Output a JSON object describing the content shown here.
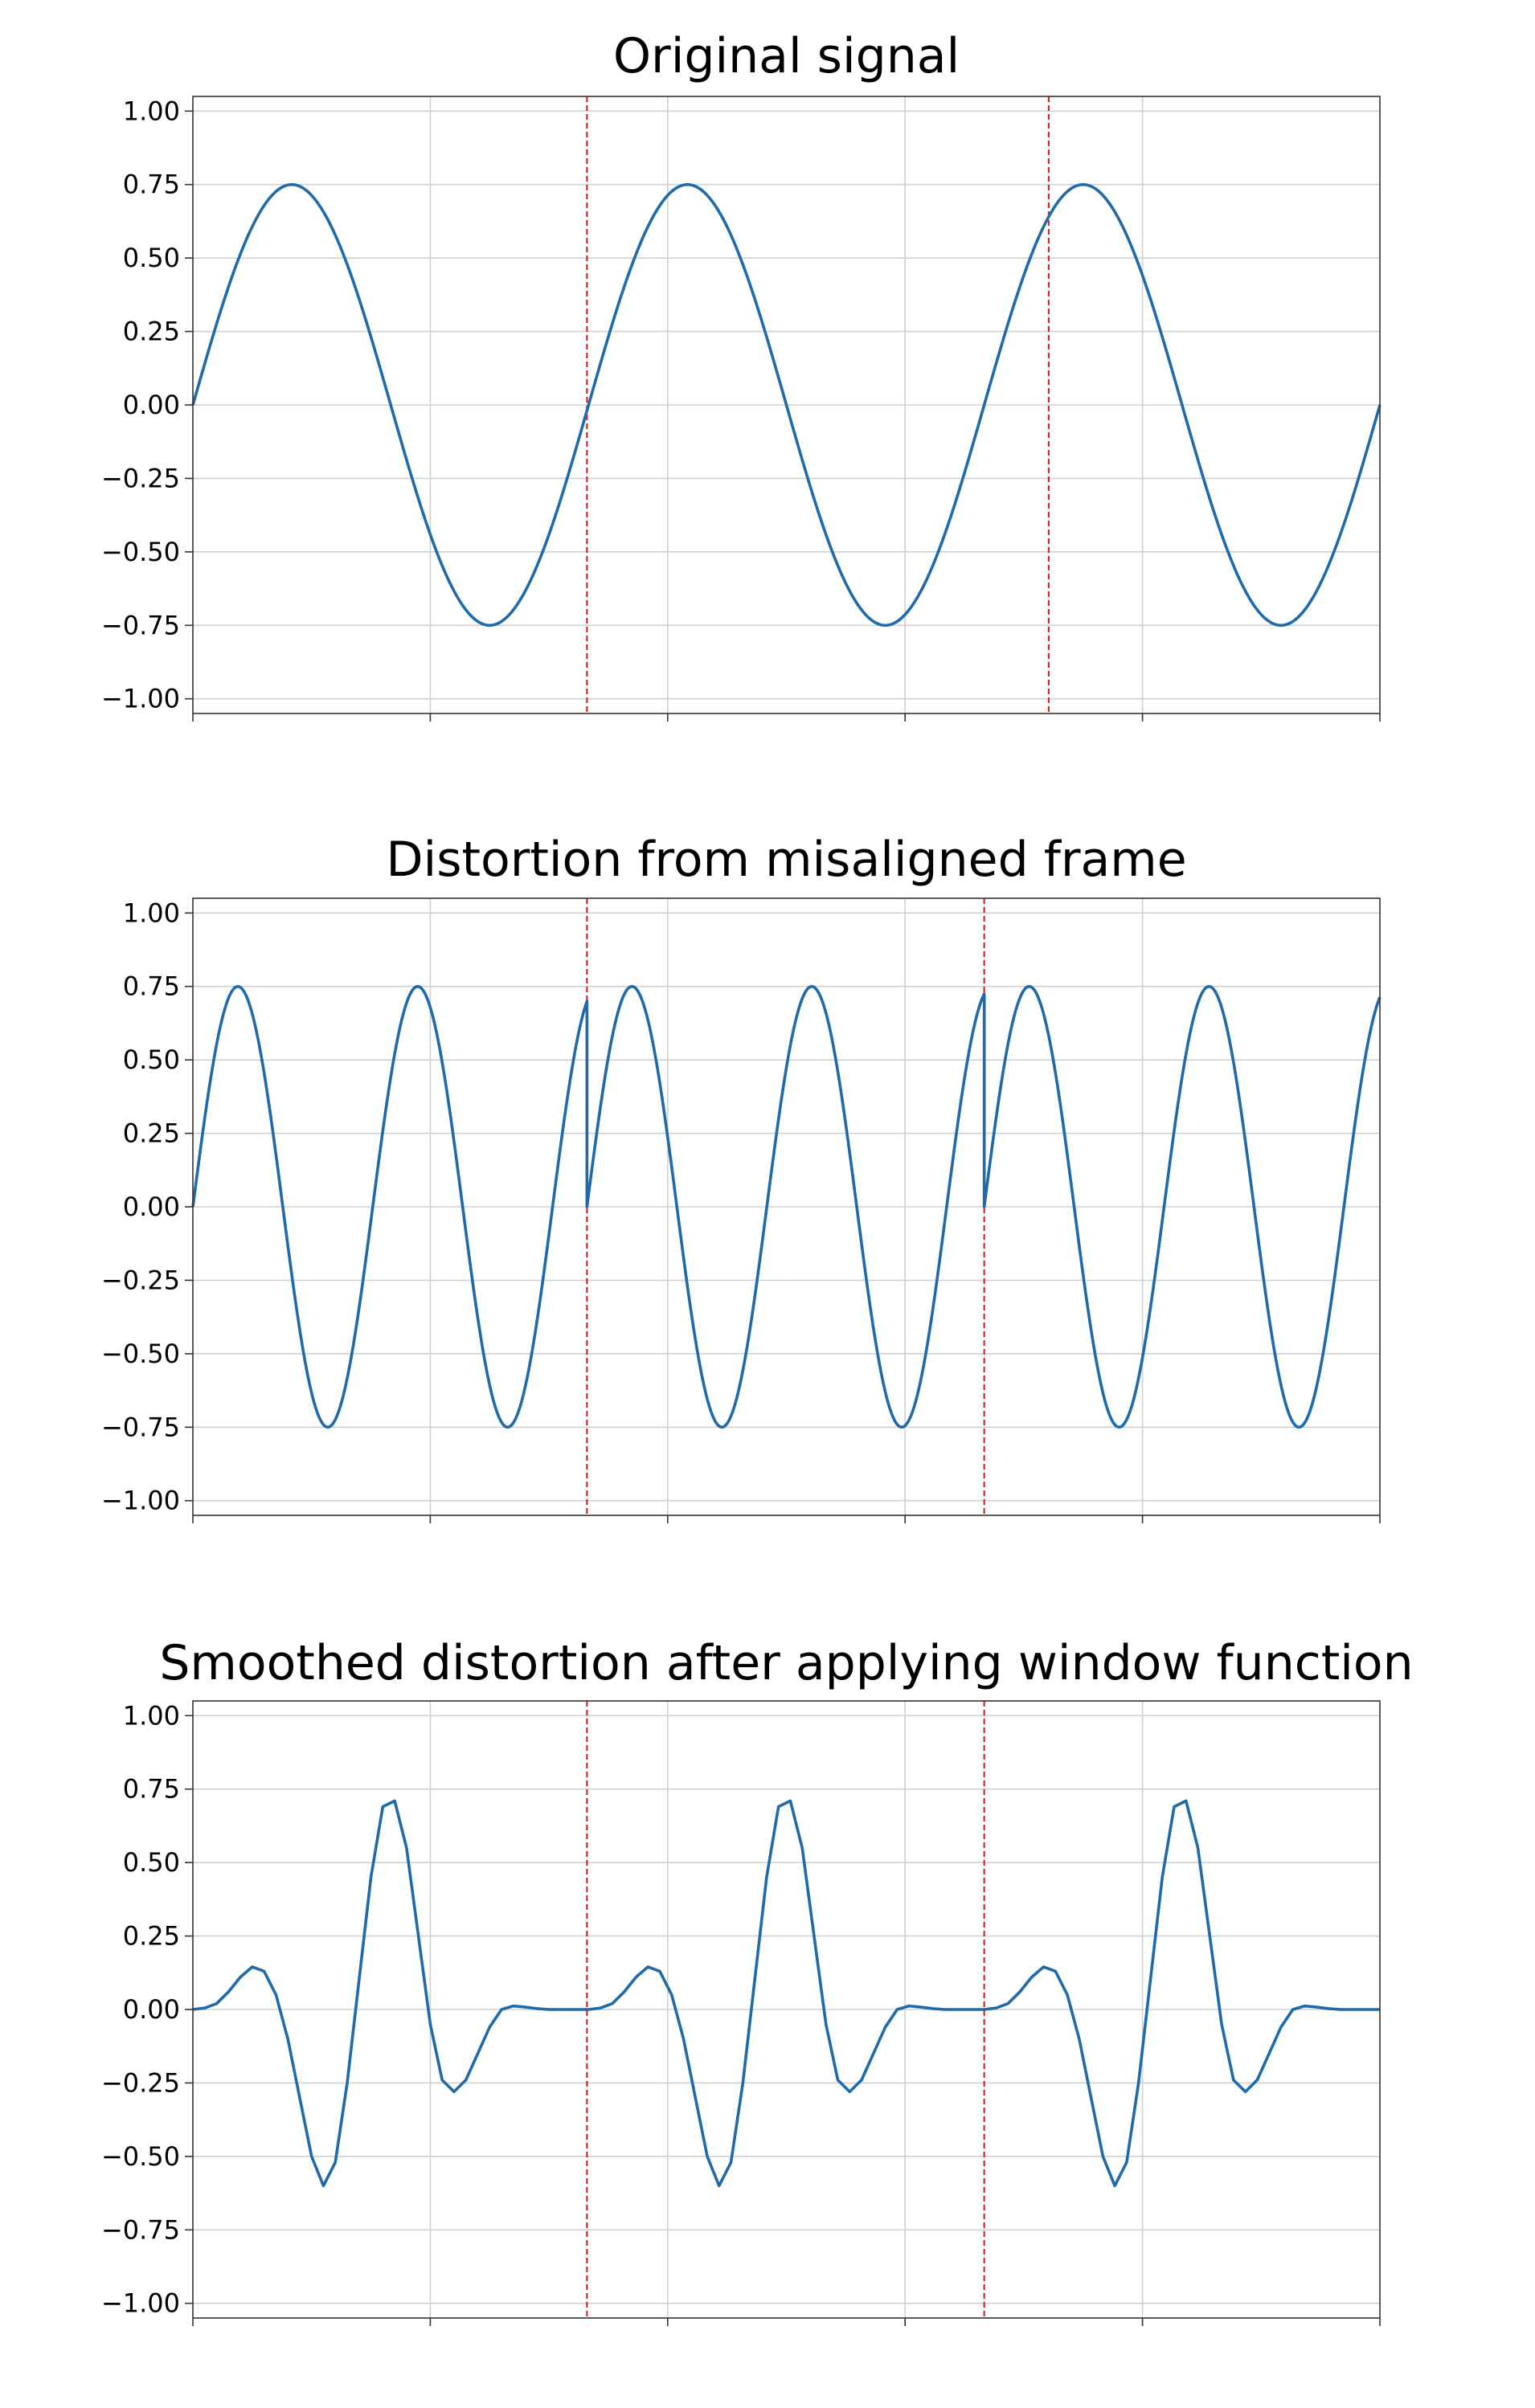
{
  "colors": {
    "series": "#1f6aa9",
    "marker_line": "#d62728"
  },
  "chart_data": [
    {
      "type": "line",
      "title": "Original signal",
      "ylim": [
        -1.05,
        1.05
      ],
      "xlim": [
        0,
        3
      ],
      "y_ticks": [
        "1.00",
        "0.75",
        "0.50",
        "0.25",
        "0.00",
        "−0.25",
        "−0.50",
        "−0.75",
        "−1.00"
      ],
      "y_tick_values": [
        1.0,
        0.75,
        0.5,
        0.25,
        0.0,
        -0.25,
        -0.5,
        -0.75,
        -1.0
      ],
      "x_grid": [
        0.6,
        1.2,
        1.8,
        2.4
      ],
      "x_tick_labels": "none",
      "grid": true,
      "vlines": [
        0.996,
        2.163
      ],
      "series": [
        {
          "x": [
            0,
            0.125,
            0.25,
            0.375,
            0.5,
            0.625,
            0.75,
            0.875,
            1.0,
            1.125,
            1.25,
            1.375,
            1.5,
            1.625,
            1.75,
            1.875,
            2.0,
            2.125,
            2.25,
            2.375,
            2.5,
            2.625,
            2.75,
            2.875,
            3.0
          ],
          "values": [
            0.0,
            0.53,
            0.75,
            0.53,
            0.0,
            -0.53,
            -0.75,
            -0.53,
            0.0,
            0.53,
            0.75,
            0.53,
            0.0,
            -0.53,
            -0.75,
            -0.53,
            0.0,
            0.53,
            0.75,
            0.53,
            0.0,
            -0.53,
            -0.75,
            -0.53,
            0.0
          ]
        }
      ]
    },
    {
      "type": "line",
      "title": "Distortion from misaligned frame",
      "ylim": [
        -1.05,
        1.05
      ],
      "xlim": [
        0,
        3
      ],
      "y_ticks": [
        "1.00",
        "0.75",
        "0.50",
        "0.25",
        "0.00",
        "−0.25",
        "−0.50",
        "−0.75",
        "−1.00"
      ],
      "y_tick_values": [
        1.0,
        0.75,
        0.5,
        0.25,
        0.0,
        -0.25,
        -0.5,
        -0.75,
        -1.0
      ],
      "x_grid": [
        0.6,
        1.2,
        1.8,
        2.4
      ],
      "x_tick_labels": "none",
      "grid": true,
      "vlines": [
        0.996,
        2.0
      ],
      "series": [
        {
          "x": [
            0,
            0.057,
            0.114,
            0.171,
            0.229,
            0.286,
            0.343,
            0.4,
            0.457,
            0.514,
            0.571,
            0.629,
            0.686,
            0.743,
            0.8,
            0.857,
            0.914,
            0.971,
            0.996,
            0.996,
            1.05,
            1.1,
            1.15,
            1.2,
            1.25,
            1.3,
            1.35,
            1.4,
            1.45,
            1.5,
            1.55,
            1.6,
            1.65,
            1.7,
            1.75,
            1.8,
            1.85,
            1.9,
            1.95,
            2.0,
            2.0,
            2.05,
            2.1,
            2.15,
            2.2,
            2.25,
            2.3,
            2.35,
            2.4,
            2.45,
            2.5,
            2.55,
            2.6,
            2.65,
            2.7,
            2.75,
            2.8,
            2.85,
            2.9,
            2.95,
            3.0
          ],
          "values": [
            0.0,
            0.53,
            0.75,
            0.53,
            0.0,
            -0.53,
            -0.75,
            -0.53,
            0.0,
            0.53,
            0.75,
            0.53,
            0.0,
            -0.53,
            -0.75,
            -0.53,
            0.0,
            0.53,
            0.65,
            0.0,
            0.55,
            0.75,
            0.52,
            0.0,
            -0.52,
            -0.75,
            -0.55,
            -0.05,
            0.48,
            0.75,
            0.58,
            0.05,
            -0.48,
            -0.75,
            -0.58,
            -0.1,
            0.44,
            0.74,
            0.62,
            0.65,
            0.0,
            0.6,
            0.75,
            0.48,
            -0.05,
            -0.56,
            -0.75,
            -0.52,
            0.02,
            0.55,
            0.75,
            0.5,
            -0.05,
            -0.56,
            -0.75,
            -0.52,
            0.0,
            0.55,
            0.75,
            0.5,
            0.65
          ]
        }
      ]
    },
    {
      "type": "line",
      "title": "Smoothed distortion after applying window function",
      "ylim": [
        -1.05,
        1.05
      ],
      "xlim": [
        0,
        3
      ],
      "y_ticks": [
        "1.00",
        "0.75",
        "0.50",
        "0.25",
        "0.00",
        "−0.25",
        "−0.50",
        "−0.75",
        "−1.00"
      ],
      "y_tick_values": [
        1.0,
        0.75,
        0.5,
        0.25,
        0.0,
        -0.25,
        -0.5,
        -0.75,
        -1.0
      ],
      "x_grid": [
        0.6,
        1.2,
        1.8,
        2.4
      ],
      "x_tick_labels": "none",
      "grid": true,
      "vlines": [
        0.996,
        2.0
      ],
      "series": [
        {
          "x": [
            0,
            0.03,
            0.06,
            0.09,
            0.12,
            0.15,
            0.18,
            0.21,
            0.24,
            0.27,
            0.3,
            0.33,
            0.36,
            0.39,
            0.42,
            0.45,
            0.48,
            0.51,
            0.54,
            0.57,
            0.6,
            0.63,
            0.66,
            0.69,
            0.72,
            0.75,
            0.78,
            0.81,
            0.84,
            0.87,
            0.9,
            0.93,
            0.96,
            0.99,
            1.0
          ],
          "values": [
            0.0,
            0.005,
            0.02,
            0.06,
            0.11,
            0.145,
            0.13,
            0.05,
            -0.1,
            -0.3,
            -0.5,
            -0.6,
            -0.52,
            -0.25,
            0.1,
            0.45,
            0.69,
            0.71,
            0.55,
            0.25,
            -0.05,
            -0.24,
            -0.28,
            -0.24,
            -0.15,
            -0.06,
            0.0,
            0.012,
            0.008,
            0.003,
            0.0,
            0.0,
            0.0,
            0.0,
            0.0
          ]
        }
      ]
    }
  ]
}
